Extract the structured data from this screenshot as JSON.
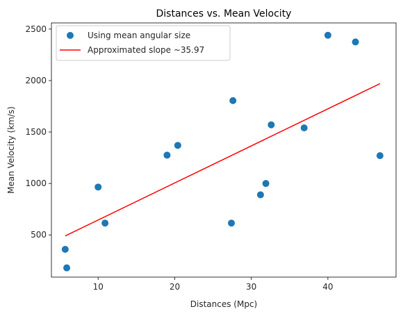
{
  "chart_data": {
    "type": "scatter",
    "title": "Distances vs. Mean Velocity",
    "xlabel": "Distances (Mpc)",
    "ylabel": "Mean Velocity (km/s)",
    "xlim": [
      3.9,
      48.9
    ],
    "ylim": [
      90,
      2560
    ],
    "xticks": [
      10,
      20,
      30,
      40
    ],
    "yticks": [
      500,
      1000,
      1500,
      2000,
      2500
    ],
    "grid": false,
    "legend_position": "top-left",
    "colors": {
      "scatter": "#1f77b4",
      "line": "#ff0000"
    },
    "series": [
      {
        "name": "Using mean angular size",
        "kind": "scatter",
        "points": [
          [
            5.7,
            360
          ],
          [
            5.9,
            180
          ],
          [
            10.0,
            965
          ],
          [
            10.9,
            615
          ],
          [
            19.0,
            1275
          ],
          [
            20.4,
            1370
          ],
          [
            27.4,
            615
          ],
          [
            27.6,
            1805
          ],
          [
            31.2,
            890
          ],
          [
            31.9,
            1000
          ],
          [
            32.6,
            1570
          ],
          [
            36.9,
            1540
          ],
          [
            40.0,
            2440
          ],
          [
            43.6,
            2375
          ],
          [
            46.8,
            1270
          ]
        ]
      },
      {
        "name": "Approximated slope ~35.97",
        "kind": "line",
        "points": [
          [
            5.7,
            490
          ],
          [
            46.8,
            1970
          ]
        ]
      }
    ]
  }
}
